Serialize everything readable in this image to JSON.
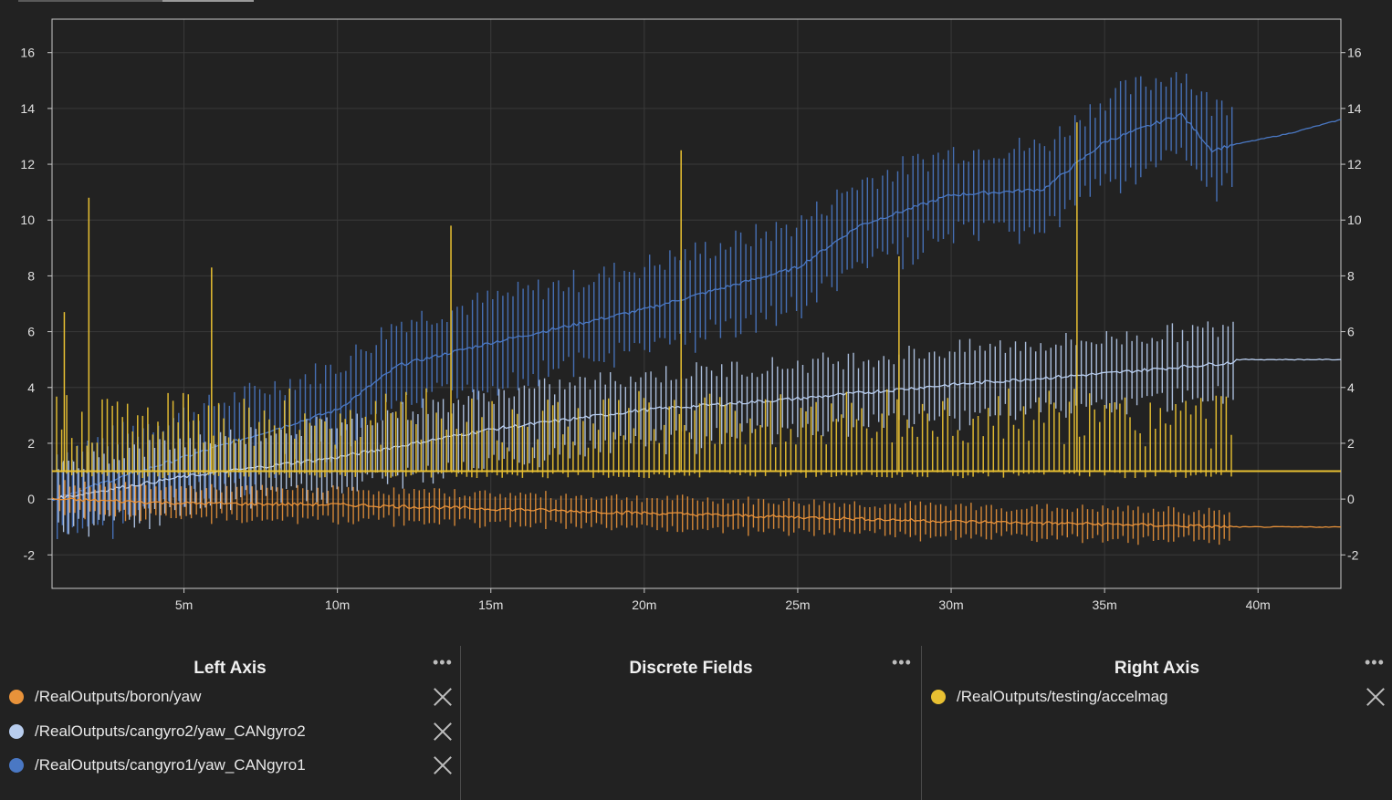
{
  "colors": {
    "background": "#222222",
    "grid": "#3a3a3a",
    "axis": "#c8c8c8",
    "boron": "#e8923a",
    "cangyro2": "#b8cdee",
    "cangyro1": "#4a78c4",
    "accelmag": "#e8c032"
  },
  "chart_data": {
    "type": "line",
    "x_unit": "minutes",
    "xlim": [
      0.7,
      42.7
    ],
    "ylim": [
      -3.2,
      17.2
    ],
    "grid": true,
    "x_ticks": [
      5,
      10,
      15,
      20,
      25,
      30,
      35,
      40
    ],
    "x_tick_labels": [
      "5m",
      "10m",
      "15m",
      "20m",
      "25m",
      "30m",
      "35m",
      "40m"
    ],
    "y_ticks_left": [
      -2,
      0,
      2,
      4,
      6,
      8,
      10,
      12,
      14,
      16
    ],
    "y_ticks_right": [
      -2,
      0,
      2,
      4,
      6,
      8,
      10,
      12,
      14,
      16
    ],
    "series": [
      {
        "name": "/RealOutputs/boron/yaw",
        "axis": "left",
        "color": "#e8923a",
        "x": [
          0.7,
          5,
          10,
          15,
          20,
          25,
          30,
          35,
          39.2,
          39.3,
          42.7
        ],
        "values": [
          0,
          -0.15,
          -0.2,
          -0.35,
          -0.5,
          -0.65,
          -0.8,
          -0.9,
          -1.0,
          -1.0,
          -1.0
        ],
        "oscillation_amplitude": 0.7
      },
      {
        "name": "/RealOutputs/cangyro2/yaw_CANgyro2",
        "axis": "left",
        "color": "#b8cdee",
        "x": [
          0.7,
          5,
          10,
          15,
          20,
          25,
          30,
          35,
          39.2,
          39.3,
          42.7
        ],
        "values": [
          0,
          0.8,
          1.5,
          2.5,
          3.2,
          3.6,
          4.1,
          4.5,
          4.9,
          5.0,
          5.0
        ],
        "oscillation_amplitude": 1.6
      },
      {
        "name": "/RealOutputs/cangyro1/yaw_CANgyro1",
        "axis": "left",
        "color": "#4a78c4",
        "x": [
          0.7,
          5,
          10,
          12,
          15,
          20,
          25,
          27,
          30,
          33,
          35,
          37.5,
          38.5,
          39.2,
          41,
          42.7
        ],
        "values": [
          0,
          1.5,
          3.2,
          4.8,
          5.6,
          6.8,
          8.3,
          9.8,
          10.9,
          11.1,
          12.8,
          13.8,
          12.5,
          12.7,
          13.1,
          13.6
        ],
        "oscillation_amplitude": 2.0
      },
      {
        "name": "/RealOutputs/testing/accelmag",
        "axis": "right",
        "color": "#e8c032",
        "x": [
          0.7,
          42.7
        ],
        "values": [
          1.0,
          1.0
        ],
        "spikes": [
          {
            "x": 1.1,
            "y": 6.7
          },
          {
            "x": 1.9,
            "y": 10.8
          },
          {
            "x": 5.9,
            "y": 8.3
          },
          {
            "x": 13.7,
            "y": 9.8
          },
          {
            "x": 21.2,
            "y": 12.5
          },
          {
            "x": 28.3,
            "y": 8.7
          },
          {
            "x": 34.1,
            "y": 13.5
          }
        ]
      }
    ]
  },
  "legend": {
    "left_axis": {
      "title": "Left Axis",
      "items": [
        {
          "label": "/RealOutputs/boron/yaw",
          "color": "#e8923a"
        },
        {
          "label": "/RealOutputs/cangyro2/yaw_CANgyro2",
          "color": "#b8cdee"
        },
        {
          "label": "/RealOutputs/cangyro1/yaw_CANgyro1",
          "color": "#4a78c4"
        }
      ]
    },
    "discrete_fields": {
      "title": "Discrete Fields"
    },
    "right_axis": {
      "title": "Right Axis",
      "items": [
        {
          "label": "/RealOutputs/testing/accelmag",
          "color": "#e8c032"
        }
      ]
    },
    "menu_glyph": "•••"
  }
}
